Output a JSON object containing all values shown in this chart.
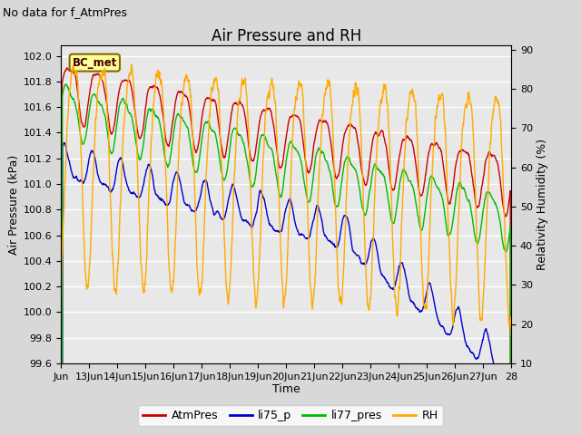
{
  "title": "Air Pressure and RH",
  "subtitle": "No data for f_AtmPres",
  "xlabel": "Time",
  "ylabel_left": "Air Pressure (kPa)",
  "ylabel_right": "Relativity Humidity (%)",
  "ylim_left": [
    99.6,
    102.08
  ],
  "ylim_right": [
    10,
    91
  ],
  "yticks_left": [
    99.6,
    99.8,
    100.0,
    100.2,
    100.4,
    100.6,
    100.8,
    101.0,
    101.2,
    101.4,
    101.6,
    101.8,
    102.0
  ],
  "yticks_right": [
    10,
    20,
    30,
    40,
    50,
    60,
    70,
    80,
    90
  ],
  "xtick_labels": [
    "Jun",
    "13Jun",
    "14Jun",
    "15Jun",
    "16Jun",
    "17Jun",
    "18Jun",
    "19Jun",
    "20Jun",
    "21Jun",
    "22Jun",
    "23Jun",
    "24Jun",
    "25Jun",
    "26Jun",
    "27Jun",
    "28"
  ],
  "legend_labels": [
    "AtmPres",
    "li75_p",
    "li77_pres",
    "RH"
  ],
  "line_colors": [
    "#cc0000",
    "#0000cc",
    "#00bb00",
    "#ffaa00"
  ],
  "bc_met_facecolor": "#ffff99",
  "bc_met_edgecolor": "#886600",
  "fig_facecolor": "#d8d8d8",
  "plot_facecolor": "#e8e8e8",
  "grid_color": "#ffffff",
  "title_fontsize": 12,
  "subtitle_fontsize": 9,
  "axis_label_fontsize": 9,
  "tick_fontsize": 8,
  "legend_fontsize": 9
}
